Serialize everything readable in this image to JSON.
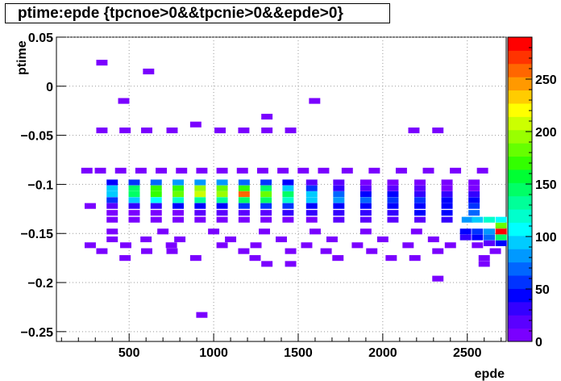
{
  "chart_data": {
    "type": "heatmap",
    "title": "ptime:epde {tpcnoe>0&&tpcnie>0&&epde>0}",
    "xlabel": "epde",
    "ylabel": "ptime",
    "xlim": [
      70,
      2730
    ],
    "ylim": [
      -0.26,
      0.05
    ],
    "x_ticks": [
      500,
      1000,
      1500,
      2000,
      2500
    ],
    "y_ticks": [
      0.05,
      0,
      -0.05,
      -0.1,
      -0.15,
      -0.2,
      -0.25
    ],
    "y_tick_labels": [
      "0.05",
      "0",
      "−0.05",
      "−0.1",
      "−0.15",
      "−0.2",
      "−0.25"
    ],
    "z_ticks": [
      0,
      50,
      100,
      150,
      200,
      250
    ],
    "zlim": [
      0,
      290
    ],
    "grid": true,
    "bin_width_x": 66.5,
    "bin_height_y": 0.00585,
    "palette": [
      "#7a00ff",
      "#5a00ff",
      "#3300ff",
      "#0000ff",
      "#0033ff",
      "#0066ff",
      "#0099ff",
      "#00ccff",
      "#00ffff",
      "#00ffcc",
      "#00ff99",
      "#00ff66",
      "#00ff33",
      "#33ff00",
      "#66ff00",
      "#99ff00",
      "#ccff00",
      "#ffff00",
      "#ffcc00",
      "#ff9900",
      "#ff6600",
      "#ff3300",
      "#ff0000"
    ],
    "cells": [
      [
        339,
        0.024,
        1
      ],
      [
        615,
        0.015,
        1
      ],
      [
        468,
        -0.015,
        1
      ],
      [
        1597,
        -0.015,
        1
      ],
      [
        1315,
        -0.031,
        1
      ],
      [
        894,
        -0.039,
        1
      ],
      [
        339,
        -0.045,
        2
      ],
      [
        476,
        -0.045,
        2
      ],
      [
        604,
        -0.045,
        2
      ],
      [
        754,
        -0.045,
        2
      ],
      [
        1038,
        -0.045,
        2
      ],
      [
        1178,
        -0.045,
        1
      ],
      [
        1315,
        -0.045,
        2
      ],
      [
        1455,
        -0.045,
        2
      ],
      [
        2184,
        -0.045,
        1
      ],
      [
        2326,
        -0.045,
        1
      ],
      [
        250,
        -0.086,
        4
      ],
      [
        330,
        -0.086,
        5
      ],
      [
        450,
        -0.086,
        6
      ],
      [
        570,
        -0.086,
        5
      ],
      [
        690,
        -0.086,
        6
      ],
      [
        810,
        -0.086,
        5
      ],
      [
        930,
        -0.086,
        6
      ],
      [
        1050,
        -0.086,
        5
      ],
      [
        1170,
        -0.086,
        4
      ],
      [
        1290,
        -0.086,
        5
      ],
      [
        1410,
        -0.086,
        4
      ],
      [
        1530,
        -0.086,
        3
      ],
      [
        1650,
        -0.086,
        3
      ],
      [
        1790,
        -0.086,
        2
      ],
      [
        1950,
        -0.086,
        2
      ],
      [
        2110,
        -0.086,
        2
      ],
      [
        2270,
        -0.086,
        2
      ],
      [
        2430,
        -0.086,
        2
      ],
      [
        2590,
        -0.086,
        2
      ],
      [
        400,
        -0.098,
        50
      ],
      [
        530,
        -0.098,
        60
      ],
      [
        660,
        -0.098,
        70
      ],
      [
        790,
        -0.098,
        80
      ],
      [
        920,
        -0.098,
        85
      ],
      [
        1050,
        -0.098,
        80
      ],
      [
        1180,
        -0.098,
        70
      ],
      [
        1310,
        -0.098,
        60
      ],
      [
        1440,
        -0.098,
        40
      ],
      [
        1580,
        -0.098,
        25
      ],
      [
        1740,
        -0.098,
        15
      ],
      [
        1900,
        -0.098,
        10
      ],
      [
        2060,
        -0.098,
        8
      ],
      [
        2220,
        -0.098,
        6
      ],
      [
        2380,
        -0.098,
        5
      ],
      [
        2540,
        -0.098,
        5
      ],
      [
        400,
        -0.104,
        100
      ],
      [
        530,
        -0.104,
        140
      ],
      [
        660,
        -0.104,
        165
      ],
      [
        790,
        -0.104,
        175
      ],
      [
        920,
        -0.104,
        200
      ],
      [
        1050,
        -0.104,
        185
      ],
      [
        1180,
        -0.104,
        165
      ],
      [
        1310,
        -0.104,
        140
      ],
      [
        1440,
        -0.104,
        100
      ],
      [
        1580,
        -0.104,
        60
      ],
      [
        1740,
        -0.104,
        35
      ],
      [
        1900,
        -0.104,
        25
      ],
      [
        2060,
        -0.104,
        20
      ],
      [
        2220,
        -0.104,
        15
      ],
      [
        2380,
        -0.104,
        12
      ],
      [
        2540,
        -0.104,
        10
      ],
      [
        400,
        -0.11,
        90
      ],
      [
        530,
        -0.11,
        150
      ],
      [
        660,
        -0.11,
        175
      ],
      [
        790,
        -0.11,
        185
      ],
      [
        920,
        -0.11,
        205
      ],
      [
        1050,
        -0.11,
        195
      ],
      [
        1180,
        -0.11,
        260
      ],
      [
        1310,
        -0.11,
        180
      ],
      [
        1440,
        -0.11,
        140
      ],
      [
        1580,
        -0.11,
        95
      ],
      [
        1740,
        -0.11,
        70
      ],
      [
        1900,
        -0.11,
        50
      ],
      [
        2060,
        -0.11,
        40
      ],
      [
        2220,
        -0.11,
        35
      ],
      [
        2380,
        -0.11,
        30
      ],
      [
        2540,
        -0.11,
        30
      ],
      [
        400,
        -0.116,
        60
      ],
      [
        530,
        -0.116,
        90
      ],
      [
        660,
        -0.116,
        110
      ],
      [
        790,
        -0.116,
        120
      ],
      [
        920,
        -0.116,
        130
      ],
      [
        1050,
        -0.116,
        130
      ],
      [
        1180,
        -0.116,
        150
      ],
      [
        1310,
        -0.116,
        150
      ],
      [
        1440,
        -0.116,
        120
      ],
      [
        1580,
        -0.116,
        100
      ],
      [
        1740,
        -0.116,
        80
      ],
      [
        1900,
        -0.116,
        70
      ],
      [
        2060,
        -0.116,
        60
      ],
      [
        2220,
        -0.116,
        55
      ],
      [
        2380,
        -0.116,
        50
      ],
      [
        2540,
        -0.116,
        50
      ],
      [
        270,
        -0.122,
        6
      ],
      [
        400,
        -0.122,
        20
      ],
      [
        530,
        -0.122,
        30
      ],
      [
        660,
        -0.122,
        35
      ],
      [
        790,
        -0.122,
        40
      ],
      [
        920,
        -0.122,
        45
      ],
      [
        1050,
        -0.122,
        50
      ],
      [
        1180,
        -0.122,
        55
      ],
      [
        1310,
        -0.122,
        60
      ],
      [
        1440,
        -0.122,
        55
      ],
      [
        1580,
        -0.122,
        50
      ],
      [
        1740,
        -0.122,
        45
      ],
      [
        1900,
        -0.122,
        40
      ],
      [
        2060,
        -0.122,
        40
      ],
      [
        2220,
        -0.122,
        45
      ],
      [
        2380,
        -0.122,
        50
      ],
      [
        2540,
        -0.122,
        60
      ],
      [
        400,
        -0.129,
        8
      ],
      [
        530,
        -0.129,
        10
      ],
      [
        660,
        -0.129,
        12
      ],
      [
        790,
        -0.129,
        12
      ],
      [
        920,
        -0.129,
        15
      ],
      [
        1050,
        -0.129,
        18
      ],
      [
        1180,
        -0.129,
        20
      ],
      [
        1310,
        -0.129,
        25
      ],
      [
        1440,
        -0.129,
        30
      ],
      [
        1580,
        -0.129,
        30
      ],
      [
        1740,
        -0.129,
        30
      ],
      [
        1900,
        -0.129,
        30
      ],
      [
        2060,
        -0.129,
        35
      ],
      [
        2220,
        -0.129,
        40
      ],
      [
        2380,
        -0.129,
        50
      ],
      [
        2540,
        -0.129,
        70
      ],
      [
        400,
        -0.136,
        5
      ],
      [
        530,
        -0.136,
        5
      ],
      [
        660,
        -0.136,
        6
      ],
      [
        790,
        -0.136,
        6
      ],
      [
        920,
        -0.136,
        7
      ],
      [
        1050,
        -0.136,
        8
      ],
      [
        1180,
        -0.136,
        8
      ],
      [
        1310,
        -0.136,
        10
      ],
      [
        1440,
        -0.136,
        12
      ],
      [
        1580,
        -0.136,
        12
      ],
      [
        1740,
        -0.136,
        14
      ],
      [
        1900,
        -0.136,
        16
      ],
      [
        2060,
        -0.136,
        18
      ],
      [
        2220,
        -0.136,
        22
      ],
      [
        2380,
        -0.136,
        30
      ],
      [
        2500,
        -0.136,
        80
      ],
      [
        2560,
        -0.136,
        100
      ],
      [
        2630,
        -0.136,
        120
      ],
      [
        2700,
        -0.136,
        110
      ],
      [
        2700,
        -0.142,
        180
      ],
      [
        2700,
        -0.148,
        290
      ],
      [
        2630,
        -0.148,
        80
      ],
      [
        2560,
        -0.148,
        60
      ],
      [
        2490,
        -0.148,
        40
      ],
      [
        400,
        -0.148,
        3
      ],
      [
        700,
        -0.148,
        3
      ],
      [
        1000,
        -0.148,
        4
      ],
      [
        1300,
        -0.148,
        3
      ],
      [
        1600,
        -0.148,
        4
      ],
      [
        1900,
        -0.148,
        4
      ],
      [
        2200,
        -0.148,
        4
      ],
      [
        2700,
        -0.154,
        150
      ],
      [
        2630,
        -0.154,
        70
      ],
      [
        2560,
        -0.154,
        50
      ],
      [
        2490,
        -0.154,
        30
      ],
      [
        400,
        -0.156,
        2
      ],
      [
        600,
        -0.156,
        2
      ],
      [
        800,
        -0.156,
        2
      ],
      [
        1100,
        -0.156,
        2
      ],
      [
        1400,
        -0.156,
        2
      ],
      [
        1700,
        -0.156,
        3
      ],
      [
        2000,
        -0.156,
        3
      ],
      [
        2300,
        -0.156,
        3
      ],
      [
        2700,
        -0.16,
        40
      ],
      [
        2630,
        -0.16,
        20
      ],
      [
        270,
        -0.162,
        1
      ],
      [
        480,
        -0.162,
        2
      ],
      [
        750,
        -0.162,
        2
      ],
      [
        1050,
        -0.162,
        2
      ],
      [
        1250,
        -0.162,
        2
      ],
      [
        1550,
        -0.162,
        2
      ],
      [
        1850,
        -0.162,
        2
      ],
      [
        2150,
        -0.162,
        2
      ],
      [
        2400,
        -0.162,
        2
      ],
      [
        2560,
        -0.162,
        2
      ],
      [
        339,
        -0.168,
        1
      ],
      [
        604,
        -0.168,
        1
      ],
      [
        754,
        -0.168,
        1
      ],
      [
        1178,
        -0.168,
        1
      ],
      [
        1455,
        -0.168,
        1
      ],
      [
        1665,
        -0.168,
        1
      ],
      [
        1935,
        -0.168,
        1
      ],
      [
        2326,
        -0.168,
        1
      ],
      [
        2666,
        -0.168,
        1
      ],
      [
        476,
        -0.175,
        1
      ],
      [
        894,
        -0.175,
        1
      ],
      [
        1245,
        -0.175,
        1
      ],
      [
        1735,
        -0.175,
        1
      ],
      [
        2050,
        -0.175,
        1
      ],
      [
        2190,
        -0.175,
        1
      ],
      [
        2600,
        -0.175,
        1
      ],
      [
        1315,
        -0.181,
        1
      ],
      [
        1455,
        -0.181,
        1
      ],
      [
        2600,
        -0.181,
        1
      ],
      [
        2326,
        -0.196,
        1
      ],
      [
        930,
        -0.233,
        1
      ]
    ]
  }
}
